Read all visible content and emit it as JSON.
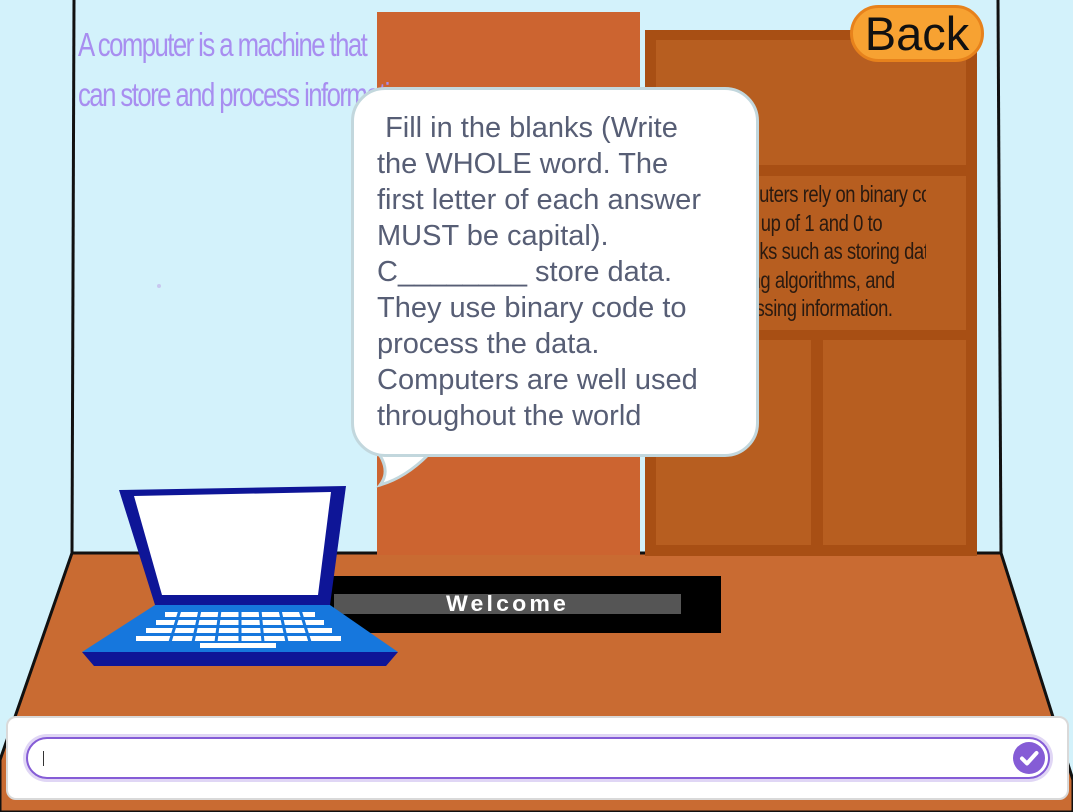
{
  "wall_text": [
    "A computer is a machine that",
    "can store and process information"
  ],
  "cabinet_text": [
    "Computers rely on binary code",
    "made up of 1 and 0 to",
    "do tasks such as storing data,",
    "running algorithms, and",
    "processing information."
  ],
  "back_button": "Back",
  "speech_bubble": " Fill in the blanks (Write\nthe WHOLE word. The\nfirst letter of each answer\nMUST be capital).\nC________ store data.\nThey use binary code to\nprocess the data.\nComputers are well used\nthroughout the world",
  "sign_text": "Welcome",
  "answer_input": {
    "value": "",
    "placeholder": ""
  },
  "icons": {
    "submit": "check-icon"
  },
  "colors": {
    "sky": "#d3f2fb",
    "floor": "#c96b32",
    "cabinet": "#b45c1c",
    "accent": "#855cd6",
    "back_button": "#f7a232"
  }
}
